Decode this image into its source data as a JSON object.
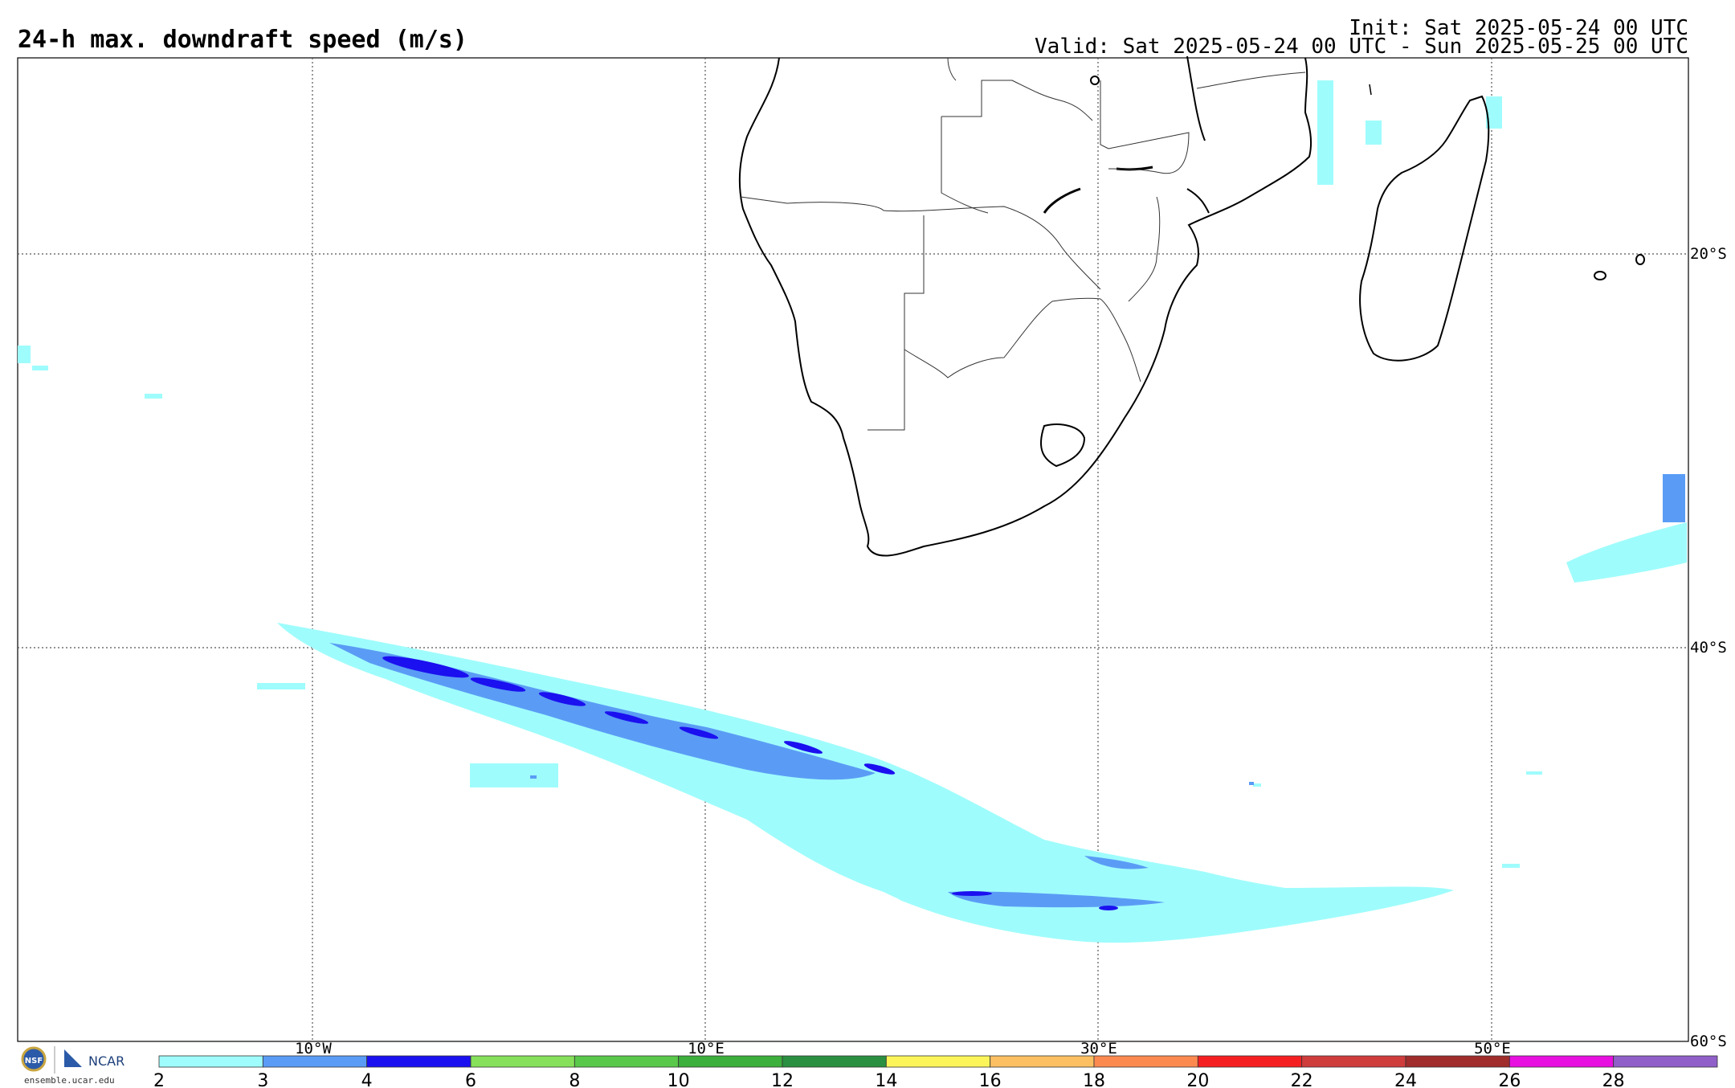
{
  "header": {
    "title": "24-h max. downdraft speed (m/s)",
    "init": "Init: Sat 2025-05-24 00 UTC",
    "valid": "Valid: Sat 2025-05-24 00 UTC - Sun 2025-05-25 00 UTC"
  },
  "map": {
    "lon_labels": [
      "10°W",
      "10°E",
      "30°E",
      "50°E"
    ],
    "lat_labels": [
      "20°S",
      "40°S",
      "60°S"
    ]
  },
  "colorbar": {
    "ticks": [
      "2",
      "3",
      "4",
      "6",
      "8",
      "10",
      "12",
      "14",
      "16",
      "18",
      "20",
      "22",
      "24",
      "26",
      "28"
    ],
    "colors": [
      "#9ffcfc",
      "#5a9cf5",
      "#1b10f0",
      "#86e05a",
      "#5ac84a",
      "#3caf3c",
      "#2a8f40",
      "#fcf55a",
      "#fcc063",
      "#fc8a50",
      "#f51f22",
      "#cf3c3c",
      "#a02c2c",
      "#e810e0",
      "#9060c8"
    ]
  },
  "footer": {
    "org_nsf": "NSF",
    "org_ncar": "NCAR",
    "site": "ensemble.ucar.edu"
  }
}
